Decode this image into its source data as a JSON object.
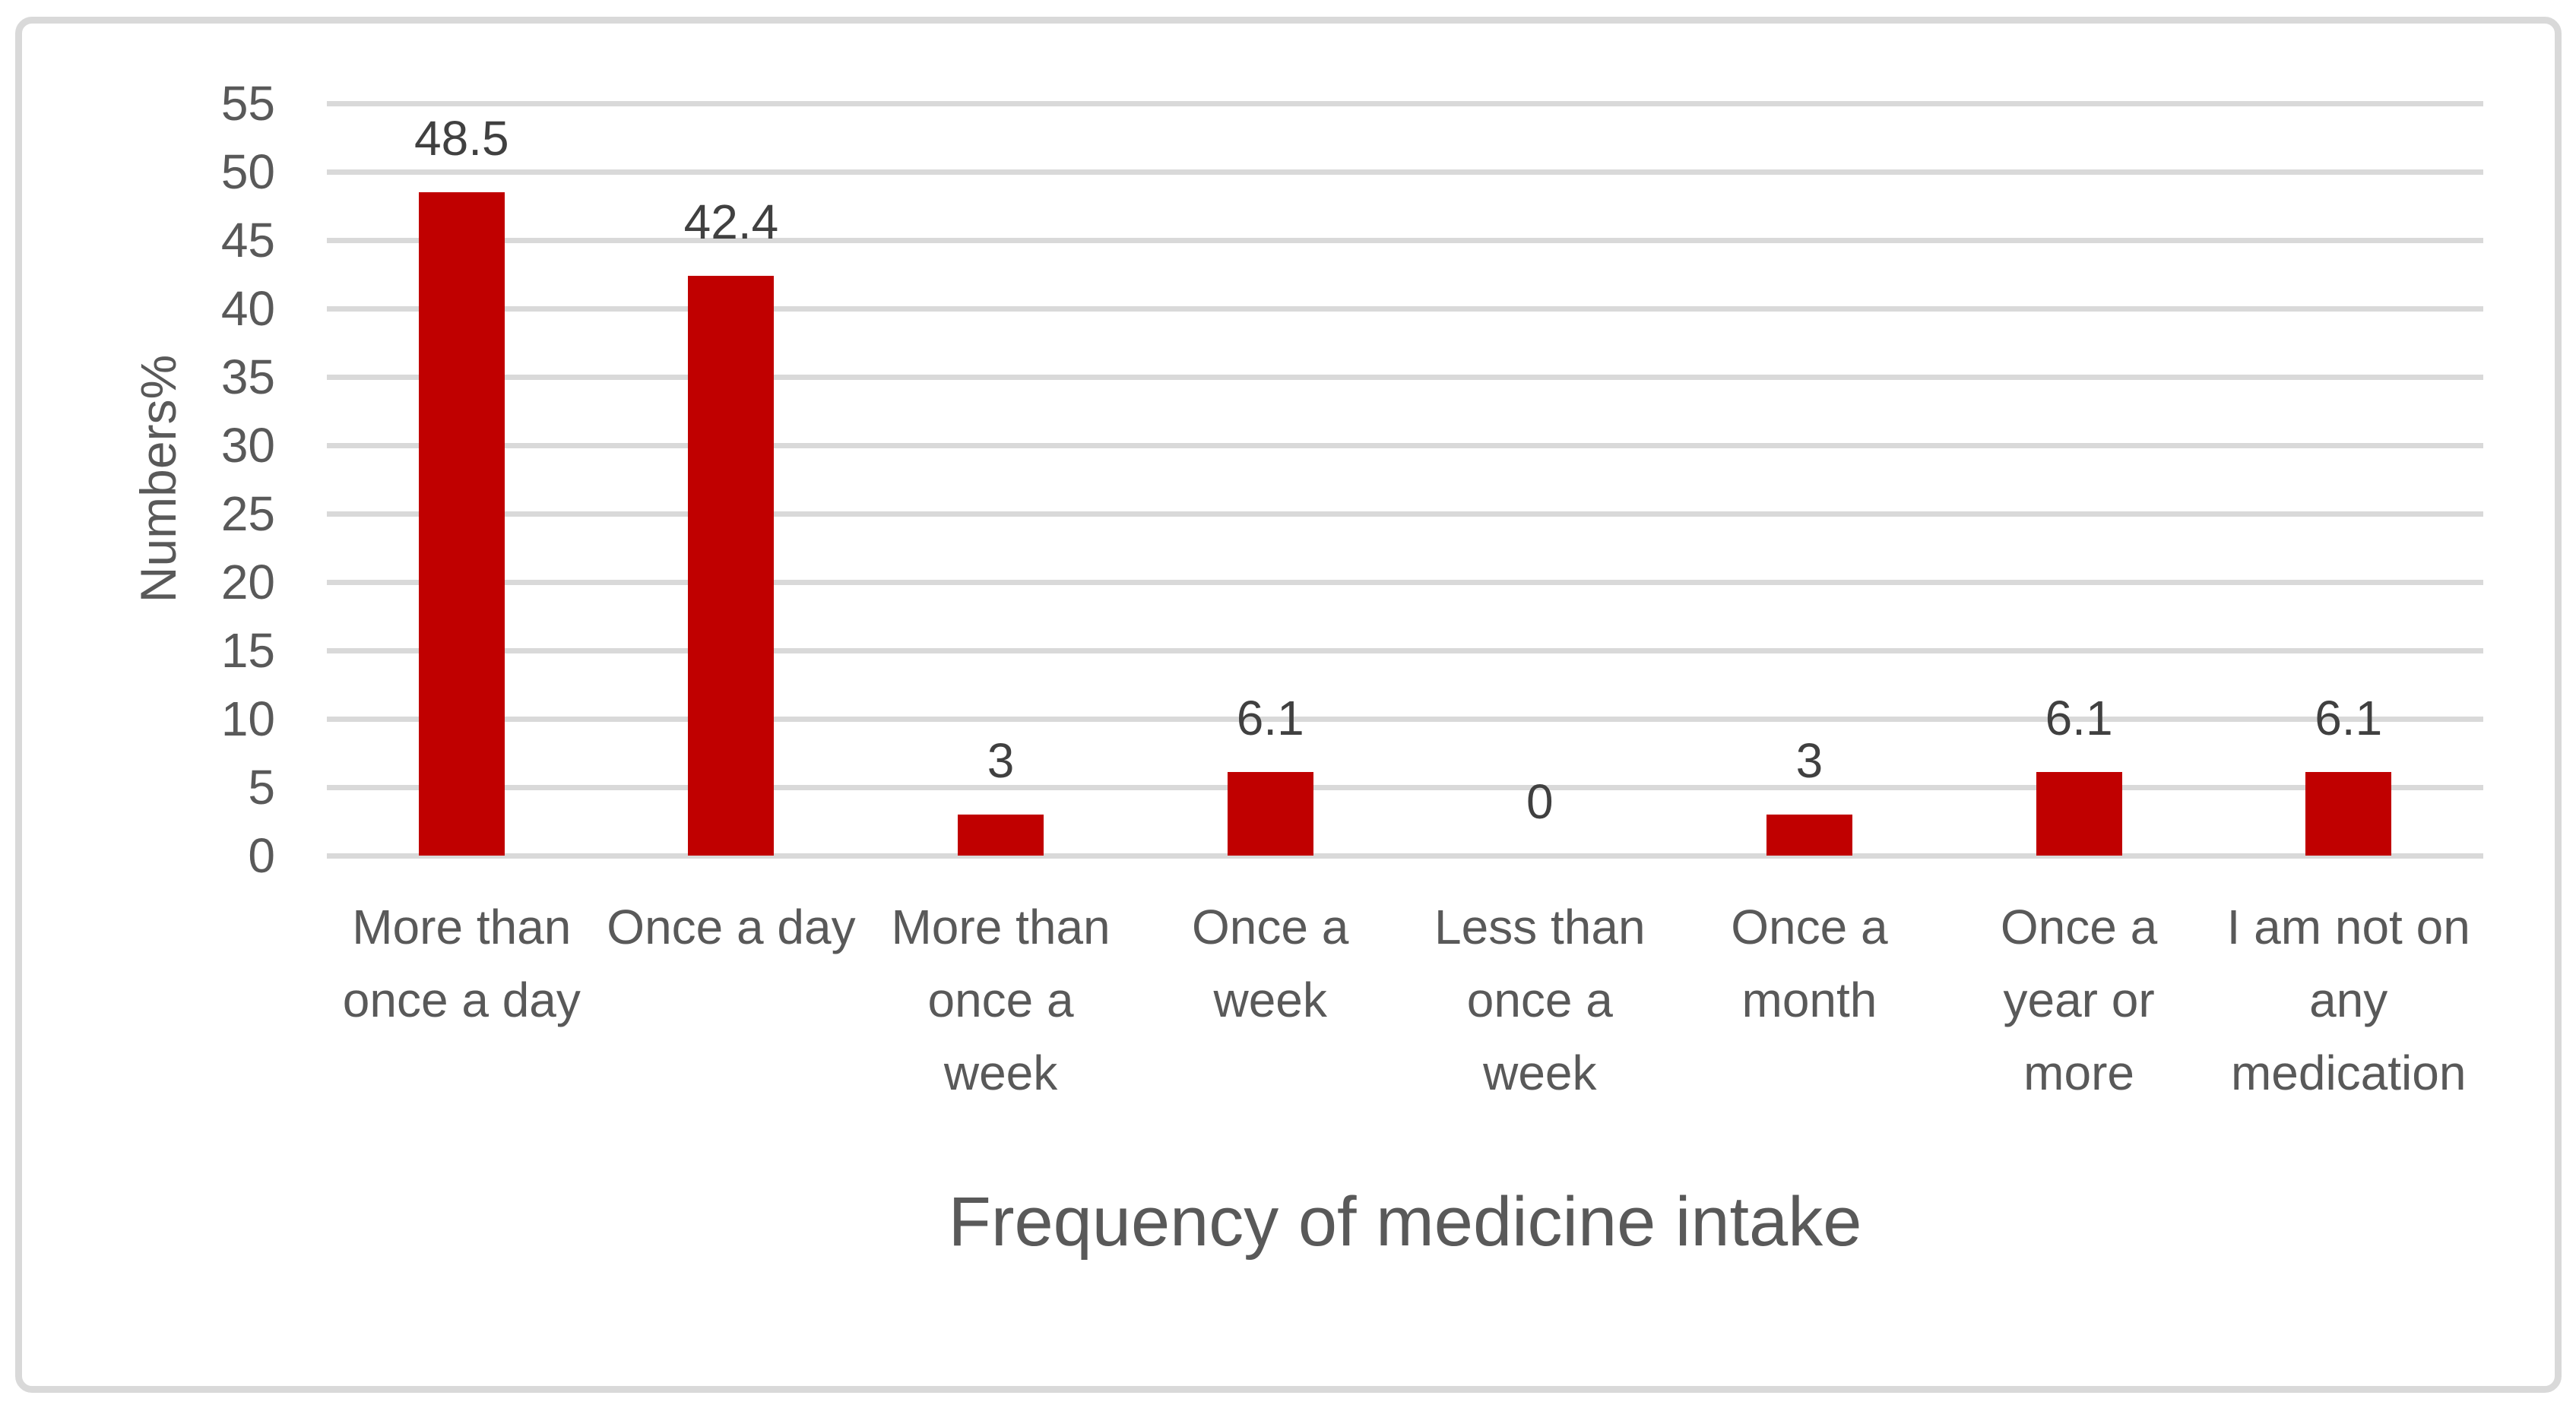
{
  "chart_data": {
    "type": "bar",
    "title": "",
    "xlabel": "Frequency of medicine intake",
    "ylabel": "Numbers%",
    "categories": [
      "More than once a day",
      "Once a day",
      "More than once a week",
      "Once a week",
      "Less than once a week",
      "Once a month",
      "Once a year or more",
      "I am not on any medication"
    ],
    "category_lines": [
      [
        "More than",
        "once a day"
      ],
      [
        "Once a day"
      ],
      [
        "More than",
        "once a",
        "week"
      ],
      [
        "Once a",
        "week"
      ],
      [
        "Less than",
        "once a",
        "week"
      ],
      [
        "Once a",
        "month"
      ],
      [
        "Once a",
        "year or",
        "more"
      ],
      [
        "I am not on",
        "any",
        "medication"
      ]
    ],
    "values": [
      48.5,
      42.4,
      3,
      6.1,
      0,
      3,
      6.1,
      6.1
    ],
    "data_labels": [
      "48.5",
      "42.4",
      "3",
      "6.1",
      "0",
      "3",
      "6.1",
      "6.1"
    ],
    "yticks": [
      0,
      5,
      10,
      15,
      20,
      25,
      30,
      35,
      40,
      45,
      50,
      55
    ],
    "ylim": [
      0,
      55
    ],
    "grid": true,
    "legend": false,
    "series_count": 1,
    "bar_color": "#c00000",
    "gridline_color": "#d9d9d9",
    "frame_border_color": "#d9d9d9",
    "axis_text_color": "#595959",
    "data_label_color": "#404040"
  }
}
